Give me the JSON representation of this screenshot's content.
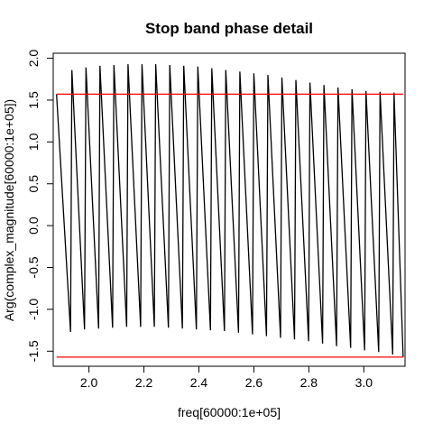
{
  "chart_data": {
    "type": "line",
    "title": "Stop band phase detail",
    "xlabel": "freq[60000:1e+05]",
    "ylabel": "Arg(complex_magnitude[60000:1e+05])",
    "xlim": [
      187000,
      315000
    ],
    "ylim": [
      -1.68,
      2.06
    ],
    "xticks": [
      200000,
      220000,
      240000,
      260000,
      280000,
      300000
    ],
    "xtick_labels": [
      "2.0",
      "2.2",
      "2.4",
      "2.6",
      "2.8",
      "3.0"
    ],
    "yticks": [
      -1.5,
      -1.0,
      -0.5,
      0.0,
      0.5,
      1.0,
      1.5,
      2.0
    ],
    "ytick_labels": [
      "-1.5",
      "-1.0",
      "-0.5",
      "0.0",
      "0.5",
      "1.0",
      "1.5",
      "2.0"
    ],
    "grid": false,
    "series": [
      {
        "color": "#000000",
        "x": [
          188200,
          193300,
          193800,
          198400,
          198900,
          203500,
          204000,
          208600,
          209100,
          213700,
          214200,
          218800,
          219300,
          223800,
          224300,
          228900,
          229400,
          234000,
          234500,
          239100,
          239600,
          244200,
          244700,
          249300,
          249800,
          254400,
          254900,
          259500,
          260000,
          264600,
          265100,
          269700,
          270200,
          274800,
          275300,
          279900,
          280400,
          285000,
          285500,
          290100,
          290600,
          295200,
          295700,
          300300,
          300800,
          305400,
          305900,
          310500,
          311000,
          314300
        ],
        "y": [
          1.57,
          -1.27,
          1.86,
          -1.24,
          1.89,
          -1.23,
          1.91,
          -1.22,
          1.92,
          -1.21,
          1.93,
          -1.21,
          1.93,
          -1.21,
          1.93,
          -1.22,
          1.92,
          -1.23,
          1.91,
          -1.24,
          1.9,
          -1.25,
          1.88,
          -1.26,
          1.86,
          -1.28,
          1.84,
          -1.3,
          1.82,
          -1.32,
          1.8,
          -1.34,
          1.77,
          -1.36,
          1.74,
          -1.38,
          1.71,
          -1.41,
          1.68,
          -1.44,
          1.65,
          -1.46,
          1.63,
          -1.49,
          1.61,
          -1.51,
          1.6,
          -1.54,
          1.59,
          -1.57
        ]
      },
      {
        "color": "#ff0000",
        "x": [
          188200,
          314300
        ],
        "y": [
          1.5708,
          1.5708
        ]
      },
      {
        "color": "#ff0000",
        "x": [
          188200,
          314300
        ],
        "y": [
          -1.5708,
          -1.5708
        ]
      }
    ]
  }
}
